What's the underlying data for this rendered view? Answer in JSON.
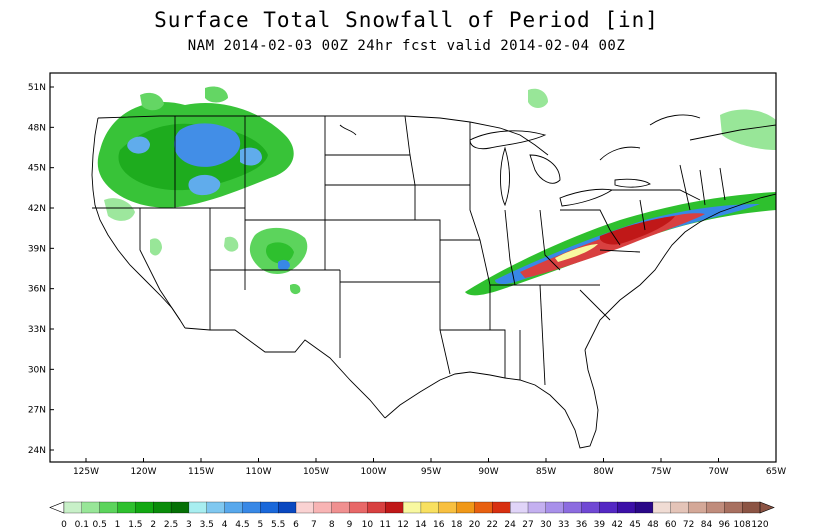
{
  "title": "Surface Total Snowfall of Period [in]",
  "subtitle": "NAM 2014-02-03 00Z 24hr fcst valid 2014-02-04 00Z",
  "lat_labels": [
    "51N",
    "48N",
    "45N",
    "42N",
    "39N",
    "36N",
    "33N",
    "30N",
    "27N",
    "24N"
  ],
  "lat_values": [
    51,
    48,
    45,
    42,
    39,
    36,
    33,
    30,
    27,
    24
  ],
  "lon_labels": [
    "125W",
    "120W",
    "115W",
    "110W",
    "105W",
    "100W",
    "95W",
    "90W",
    "85W",
    "80W",
    "75W",
    "70W",
    "65W"
  ],
  "lon_values": [
    -125,
    -120,
    -115,
    -110,
    -105,
    -100,
    -95,
    -90,
    -85,
    -80,
    -75,
    -70,
    -65
  ],
  "legend": {
    "labels": [
      "0",
      "0.1",
      "0.5",
      "1",
      "1.5",
      "2",
      "2.5",
      "3",
      "3.5",
      "4",
      "4.5",
      "5",
      "5.5",
      "6",
      "7",
      "8",
      "9",
      "10",
      "11",
      "12",
      "14",
      "16",
      "18",
      "20",
      "22",
      "24",
      "27",
      "30",
      "33",
      "36",
      "39",
      "42",
      "45",
      "48",
      "60",
      "72",
      "84",
      "96",
      "108",
      "120"
    ],
    "colors": [
      "#c8f0c8",
      "#98e698",
      "#5cd45c",
      "#2ec02e",
      "#12a812",
      "#0a8c0a",
      "#057005",
      "#a8eef0",
      "#80c8f0",
      "#58a8ec",
      "#3888e6",
      "#1a68da",
      "#0a48c0",
      "#fad2d2",
      "#f8b4b4",
      "#f09090",
      "#e86868",
      "#d84040",
      "#c01818",
      "#f8f8a0",
      "#f8e060",
      "#f8c040",
      "#f09818",
      "#e86010",
      "#d83010",
      "#e0d4f8",
      "#c4b0f0",
      "#a890ea",
      "#8c6ce0",
      "#7048d4",
      "#5428c4",
      "#3c10a8",
      "#2a0888",
      "#f0dcd4",
      "#e4c4b8",
      "#d4a898",
      "#c08c7c",
      "#a87060",
      "#8c5444"
    ]
  },
  "colors": {
    "map_lines": "#000000",
    "frame": "#000000",
    "light_snow": "#2ec02e",
    "moderate_snow": "#3888e6",
    "heavy_snow": "#d84040",
    "extreme_snow": "#f8f8a0"
  }
}
